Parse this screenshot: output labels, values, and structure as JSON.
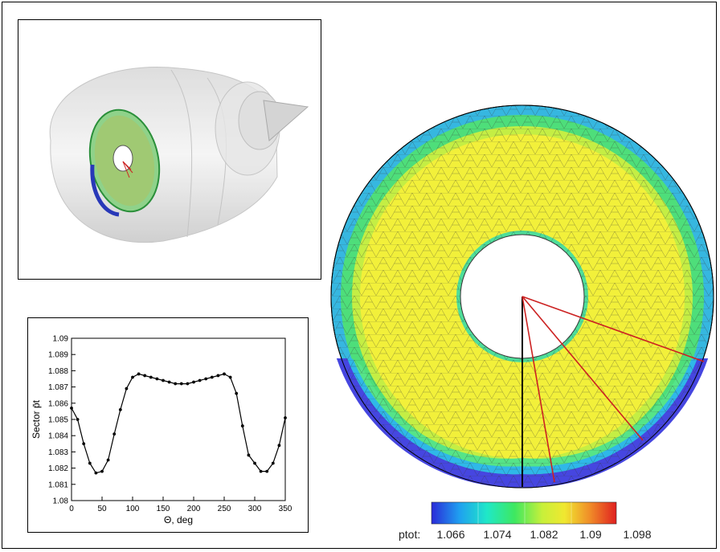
{
  "colors": {
    "colormap": [
      "#2a2ad8",
      "#1f9ff0",
      "#1fe8c8",
      "#3ee860",
      "#c8f03a",
      "#f0e830",
      "#f08a28",
      "#e02020"
    ],
    "ring_outer": "#3aa8e0",
    "ring_mid": "#49e07a",
    "ring_main": "#f2f03a",
    "ring_low": "#4646e0",
    "sector_line": "#cc2222"
  },
  "chart_data": {
    "type": "line",
    "title": "",
    "xlabel": "Θ, deg",
    "ylabel": "Sector p̄t",
    "xlim": [
      0,
      350
    ],
    "ylim": [
      1.08,
      1.09
    ],
    "x_ticks": [
      "0",
      "50",
      "100",
      "150",
      "200",
      "250",
      "300",
      "350"
    ],
    "y_ticks": [
      "1.08",
      "1.081",
      "1.082",
      "1.083",
      "1.084",
      "1.085",
      "1.086",
      "1.087",
      "1.088",
      "1.089",
      "1.09"
    ],
    "grid": false,
    "series": [
      {
        "x": [
          0,
          10,
          20,
          30,
          40,
          50,
          60,
          70,
          80,
          90,
          100,
          110,
          120,
          130,
          140,
          150,
          160,
          170,
          180,
          190,
          200,
          210,
          220,
          230,
          240,
          250,
          260,
          270,
          280,
          290,
          300,
          310,
          320,
          330,
          340,
          350
        ],
        "values": [
          1.0857,
          1.085,
          1.0835,
          1.0823,
          1.0817,
          1.0818,
          1.0825,
          1.0841,
          1.0856,
          1.0869,
          1.0876,
          1.0878,
          1.0877,
          1.0876,
          1.0875,
          1.0874,
          1.0873,
          1.0872,
          1.0872,
          1.0872,
          1.0873,
          1.0874,
          1.0875,
          1.0876,
          1.0877,
          1.0878,
          1.0876,
          1.0866,
          1.0846,
          1.0828,
          1.0823,
          1.0818,
          1.0818,
          1.0823,
          1.0834,
          1.0851
        ]
      }
    ],
    "colorbar": {
      "label": "ptot:",
      "ticks": [
        "1.066",
        "1.074",
        "1.082",
        "1.09",
        "1.098"
      ]
    }
  }
}
